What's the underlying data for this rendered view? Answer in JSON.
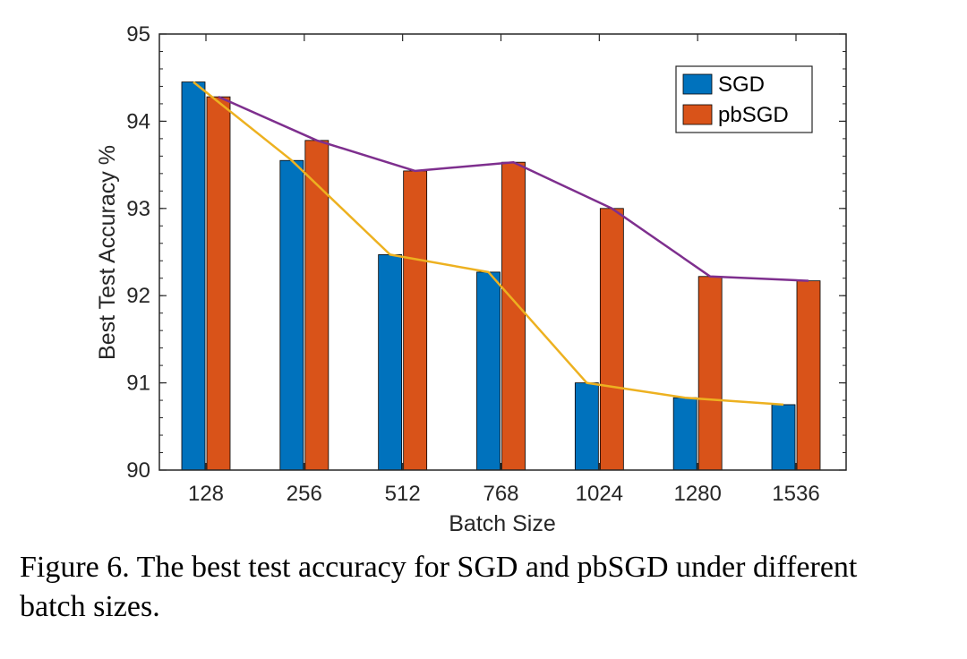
{
  "chart_data": {
    "type": "bar",
    "title": "",
    "xlabel": "Batch Size",
    "ylabel": "Best Test Accuracy %",
    "categories": [
      "128",
      "256",
      "512",
      "768",
      "1024",
      "1280",
      "1536"
    ],
    "ylim": [
      90,
      95
    ],
    "yticks": [
      90,
      91,
      92,
      93,
      94,
      95
    ],
    "grid": false,
    "legend_position": "top-right",
    "series": [
      {
        "name": "SGD",
        "values": [
          94.45,
          93.55,
          92.47,
          92.27,
          91.0,
          90.83,
          90.75
        ],
        "color": "#0072BD"
      },
      {
        "name": "pbSGD",
        "values": [
          94.28,
          93.78,
          93.43,
          93.53,
          93.0,
          92.22,
          92.17
        ],
        "color": "#D95319"
      }
    ],
    "trend_lines": [
      {
        "series": "SGD",
        "color": "#EDB120"
      },
      {
        "series": "pbSGD",
        "color": "#7E2F8E"
      }
    ]
  },
  "caption": {
    "line1": "Figure 6. The best test accuracy for SGD and pbSGD under different",
    "line2": "batch sizes."
  }
}
